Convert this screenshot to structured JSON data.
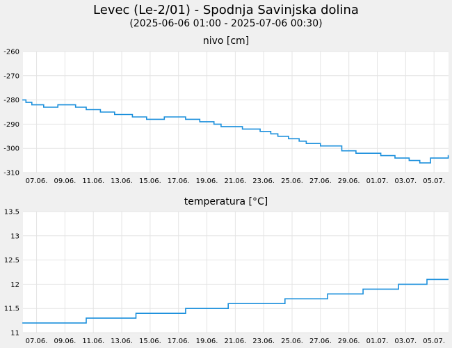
{
  "title": "Levec (Le-2/01) - Spodnja Savinjska dolina",
  "subtitle": "(2025-06-06 01:00 - 2025-07-06 00:30)",
  "colors": {
    "line": "#1a8fdc",
    "grid": "#e4e4e4",
    "plot_bg": "#ffffff",
    "page_bg": "#f0f0f0"
  },
  "chart_data": [
    {
      "type": "line",
      "title": "nivo [cm]",
      "x_ticks": [
        "07.06.",
        "09.06.",
        "11.06.",
        "13.06.",
        "15.06.",
        "17.06.",
        "19.06.",
        "21.06.",
        "23.06.",
        "25.06.",
        "27.06.",
        "29.06.",
        "01.07.",
        "03.07.",
        "05.07."
      ],
      "y_ticks": [
        "-260",
        "-270",
        "-280",
        "-290",
        "-300",
        "-310"
      ],
      "ylim": [
        -310,
        -260
      ],
      "grid": true,
      "series": [
        {
          "points": [
            [
              "2025-06-06",
              -280
            ],
            [
              "2025-06-06T06",
              -281
            ],
            [
              "2025-06-06T16",
              -282
            ],
            [
              "2025-06-07T12",
              -283
            ],
            [
              "2025-06-08T12",
              -282
            ],
            [
              "2025-06-09T18",
              -283
            ],
            [
              "2025-06-10T12",
              -284
            ],
            [
              "2025-06-11T12",
              -285
            ],
            [
              "2025-06-12T12",
              -286
            ],
            [
              "2025-06-13T18",
              -287
            ],
            [
              "2025-06-14T18",
              -288
            ],
            [
              "2025-06-16",
              -287
            ],
            [
              "2025-06-17T12",
              -288
            ],
            [
              "2025-06-18T12",
              -289
            ],
            [
              "2025-06-19T12",
              -290
            ],
            [
              "2025-06-20",
              -291
            ],
            [
              "2025-06-21T12",
              -292
            ],
            [
              "2025-06-22T18",
              -293
            ],
            [
              "2025-06-23T12",
              -294
            ],
            [
              "2025-06-24",
              -295
            ],
            [
              "2025-06-24T18",
              -296
            ],
            [
              "2025-06-25T12",
              -297
            ],
            [
              "2025-06-26",
              -298
            ],
            [
              "2025-06-27",
              -299
            ],
            [
              "2025-06-28T12",
              -301
            ],
            [
              "2025-06-29T12",
              -302
            ],
            [
              "2025-07-01T06",
              -303
            ],
            [
              "2025-07-02T06",
              -304
            ],
            [
              "2025-07-03T06",
              -305
            ],
            [
              "2025-07-04",
              -306
            ],
            [
              "2025-07-04T18",
              -304
            ],
            [
              "2025-07-06",
              -303
            ]
          ]
        }
      ]
    },
    {
      "type": "line",
      "title": "temperatura [°C]",
      "x_ticks": [
        "07.06.",
        "09.06.",
        "11.06.",
        "13.06.",
        "15.06.",
        "17.06.",
        "19.06.",
        "21.06.",
        "23.06.",
        "25.06.",
        "27.06.",
        "29.06.",
        "01.07.",
        "03.07.",
        "05.07."
      ],
      "y_ticks": [
        "13.5",
        "13",
        "12.5",
        "12",
        "11.5",
        "11"
      ],
      "ylim": [
        11,
        13.5
      ],
      "grid": true,
      "series": [
        {
          "points": [
            [
              "2025-06-06",
              11.2
            ],
            [
              "2025-06-10T12",
              11.3
            ],
            [
              "2025-06-14",
              11.4
            ],
            [
              "2025-06-17T12",
              11.5
            ],
            [
              "2025-06-20T12",
              11.6
            ],
            [
              "2025-06-24T12",
              11.7
            ],
            [
              "2025-06-27T12",
              11.8
            ],
            [
              "2025-06-30",
              11.9
            ],
            [
              "2025-07-02T12",
              12.0
            ],
            [
              "2025-07-04T12",
              12.1
            ],
            [
              "2025-07-06",
              12.1
            ]
          ]
        }
      ]
    }
  ]
}
